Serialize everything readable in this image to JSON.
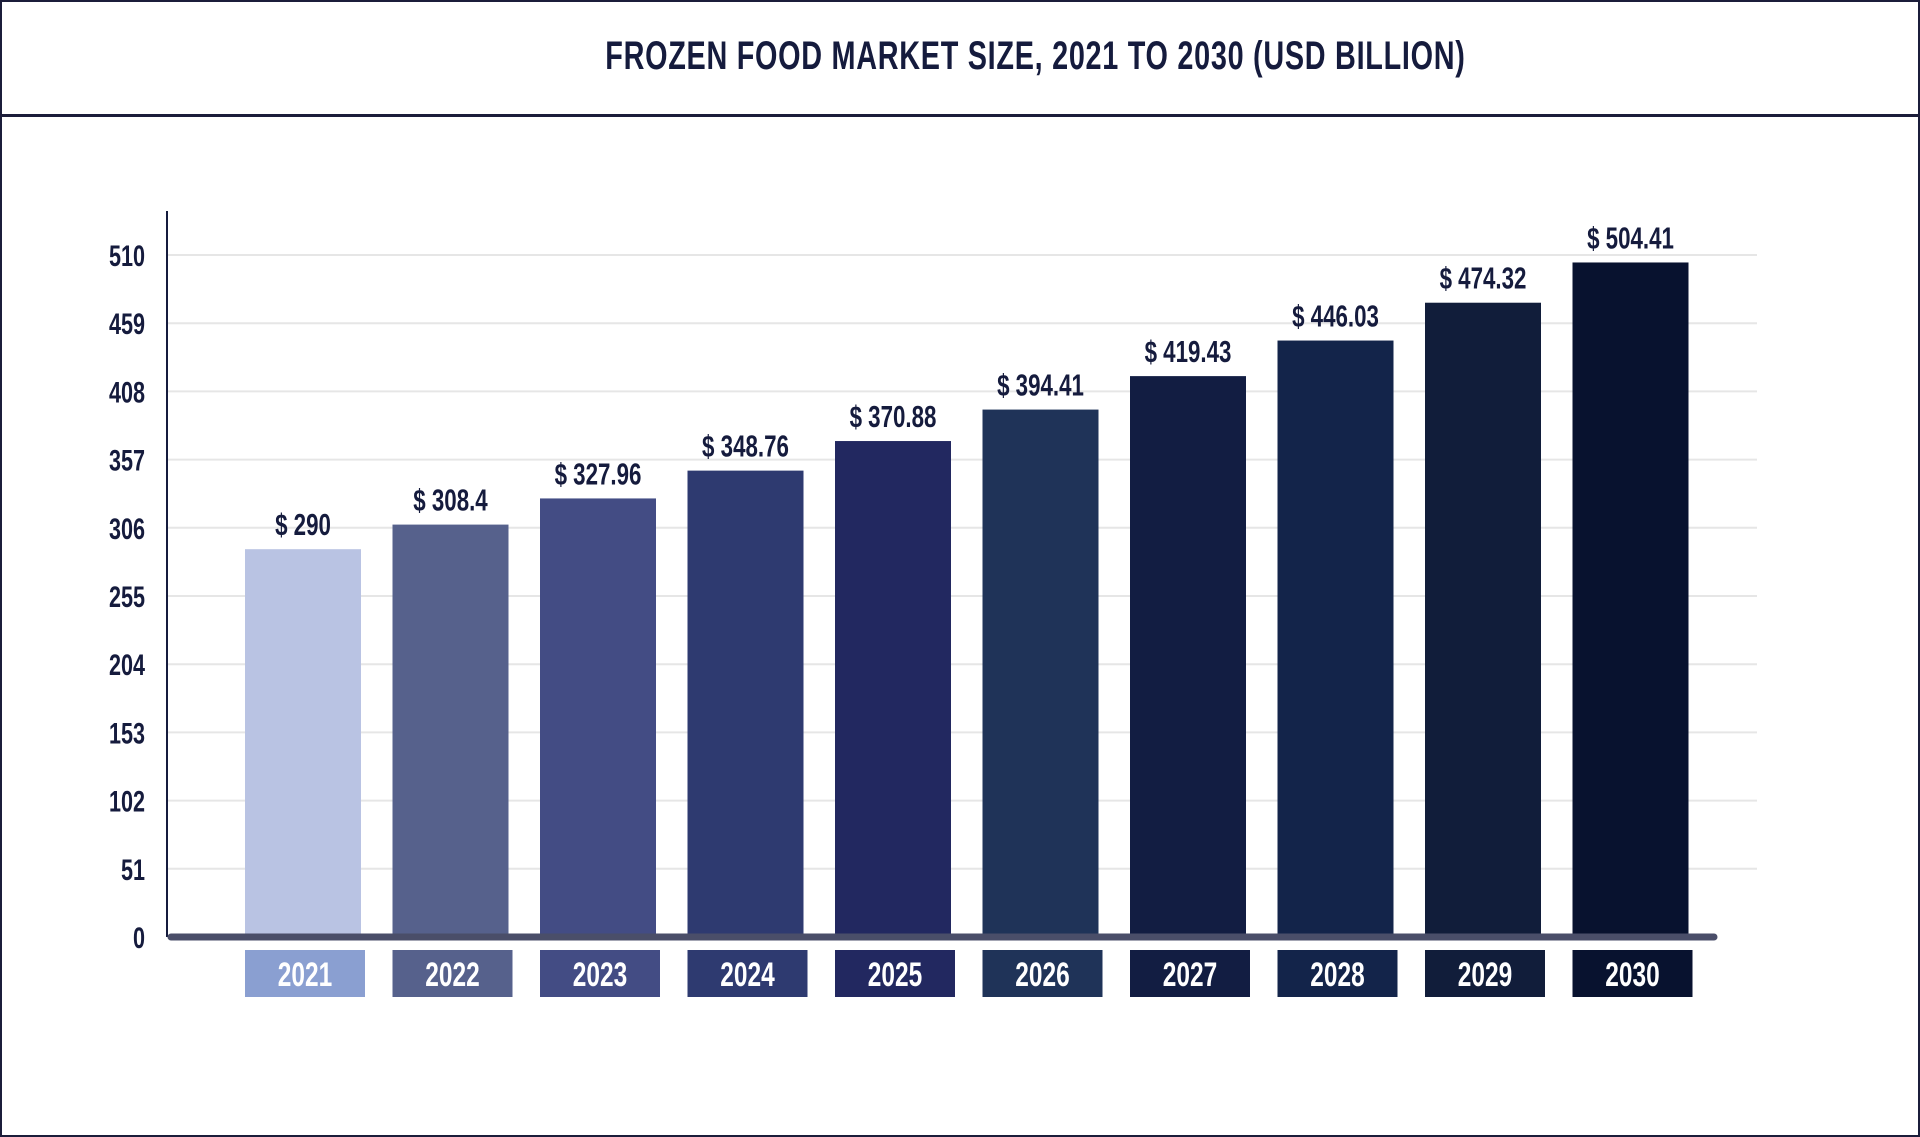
{
  "chart_data": {
    "type": "bar",
    "title": "FROZEN FOOD MARKET SIZE, 2021 TO 2030 (USD BILLION)",
    "xlabel": "",
    "ylabel": "",
    "categories": [
      "2021",
      "2022",
      "2023",
      "2024",
      "2025",
      "2026",
      "2027",
      "2028",
      "2029",
      "2030"
    ],
    "values": [
      290,
      308.4,
      327.96,
      348.76,
      370.88,
      394.41,
      419.43,
      446.03,
      474.32,
      504.41
    ],
    "data_labels": [
      "$ 290",
      "$ 308.4",
      "$ 327.96",
      "$ 348.76",
      "$ 370.88",
      "$ 394.41",
      "$ 419.43",
      "$ 446.03",
      "$ 474.32",
      "$ 504.41"
    ],
    "yticks": [
      0,
      51,
      102,
      153,
      204,
      255,
      306,
      357,
      408,
      459,
      510
    ],
    "ylim": [
      0,
      510
    ],
    "grid": true,
    "legend": "none",
    "bar_colors": [
      "#b9c3e3",
      "#56618c",
      "#434c84",
      "#2e3a70",
      "#222860",
      "#1f3358",
      "#121d42",
      "#13244a",
      "#111d3a",
      "#08122f"
    ],
    "label_box_colors": [
      "#8a9fd1",
      "#56618c",
      "#434c84",
      "#2e3a70",
      "#222860",
      "#1f3358",
      "#121d42",
      "#13244a",
      "#111d3a",
      "#08122f"
    ],
    "axis_color": "#4a4e69",
    "text_color": "#151b3d"
  }
}
